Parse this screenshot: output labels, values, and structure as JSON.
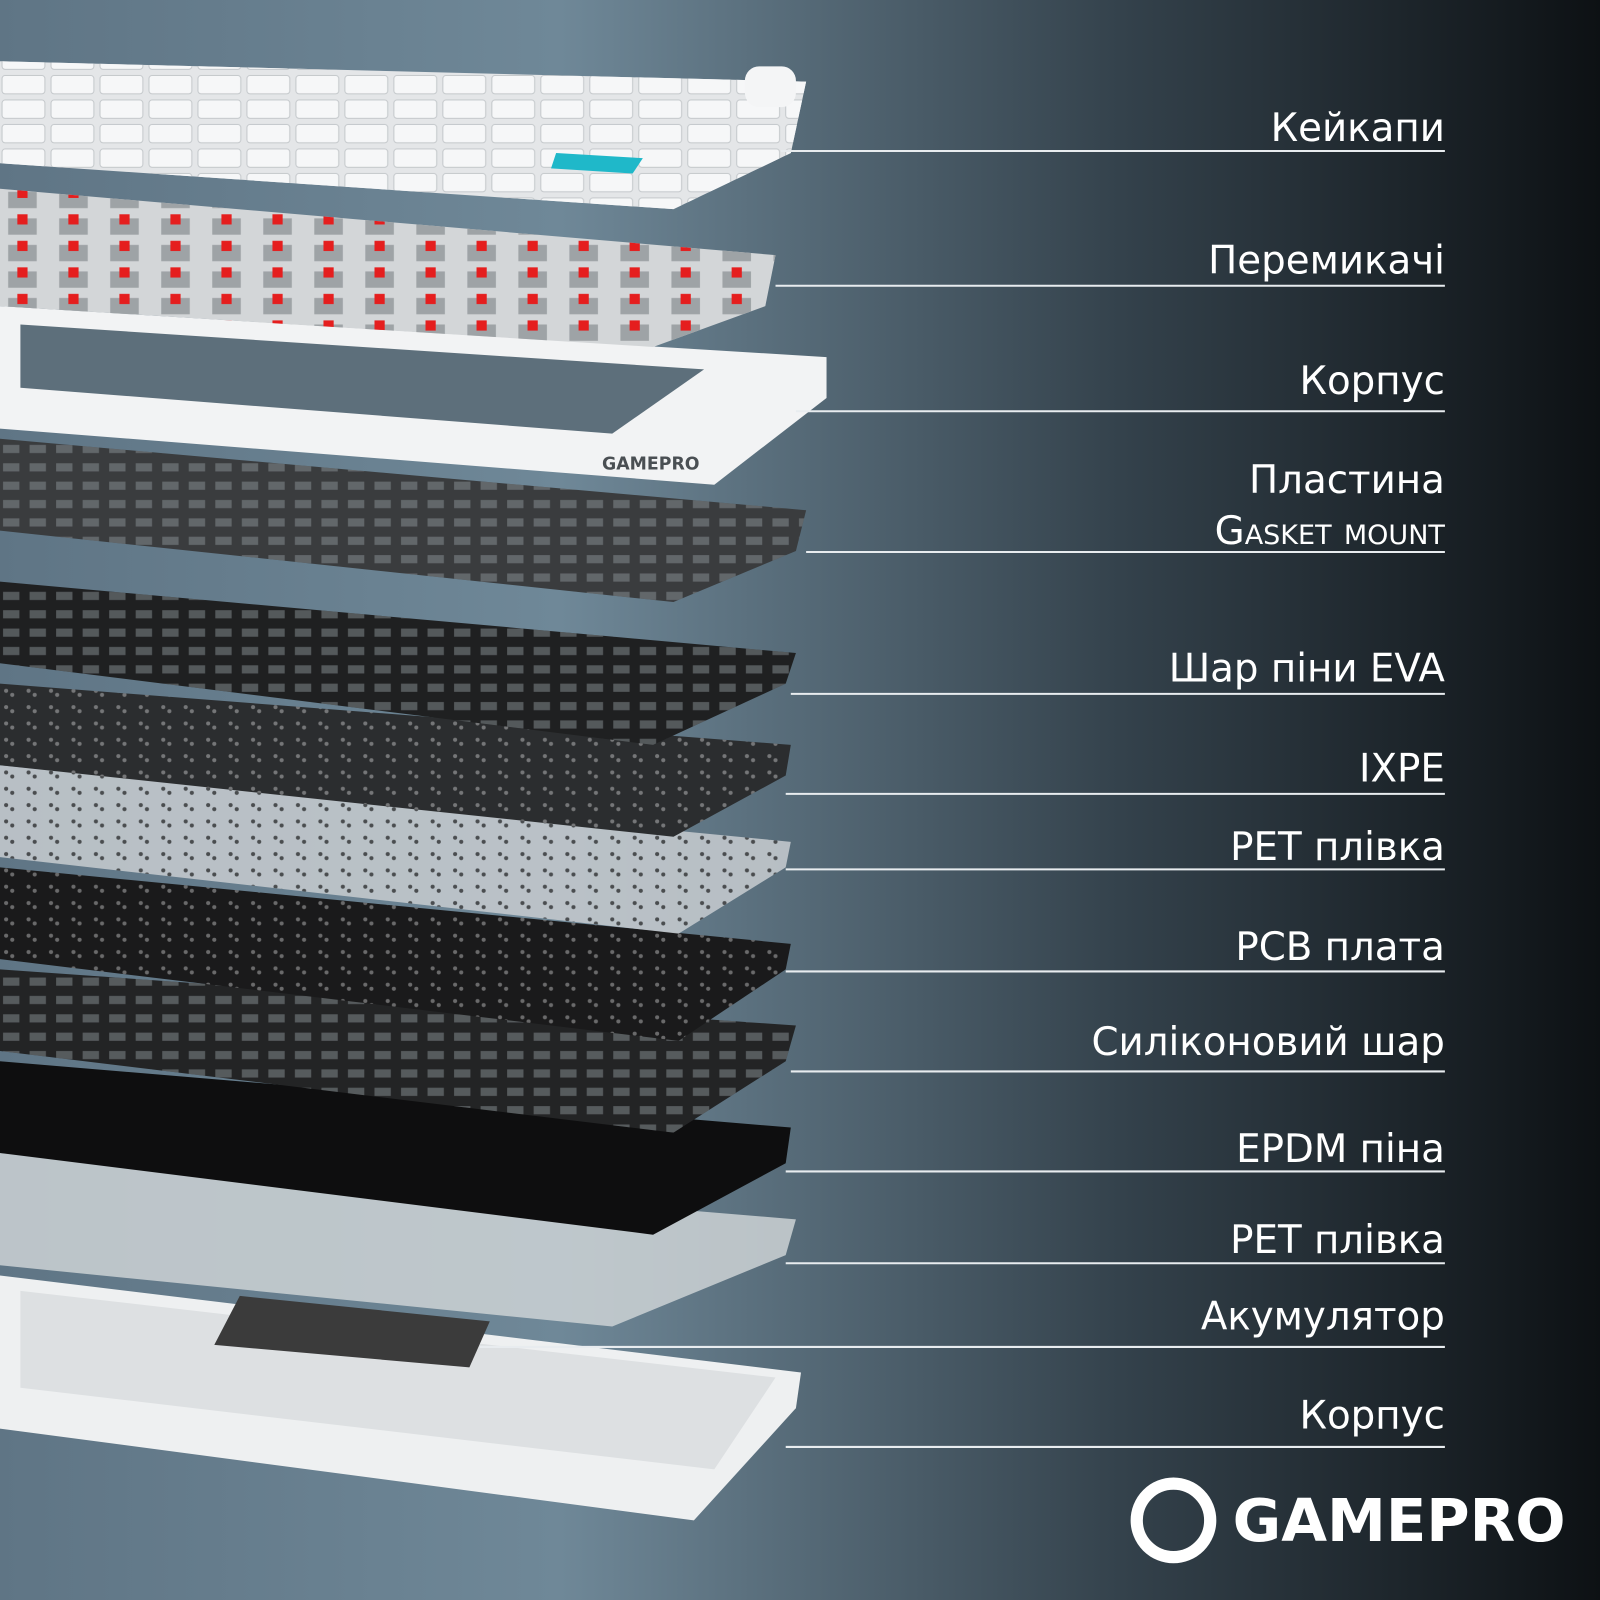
{
  "labels": [
    {
      "text": "Кейкапи"
    },
    {
      "text": "Перемикачі"
    },
    {
      "text": "Корпус"
    },
    {
      "text": "Пластина",
      "text2": "Gasket mount"
    },
    {
      "text": "Шар піни EVA"
    },
    {
      "text": "IXPE"
    },
    {
      "text": "PET плівка"
    },
    {
      "text": "PCB плата"
    },
    {
      "text": "Силіконовий шар"
    },
    {
      "text": "EPDM піна"
    },
    {
      "text": "PET плівка"
    },
    {
      "text": "Акумулятор"
    },
    {
      "text": "Корпус"
    }
  ],
  "case_logo": "GAMEPRO",
  "brand": "GAMEPRO"
}
